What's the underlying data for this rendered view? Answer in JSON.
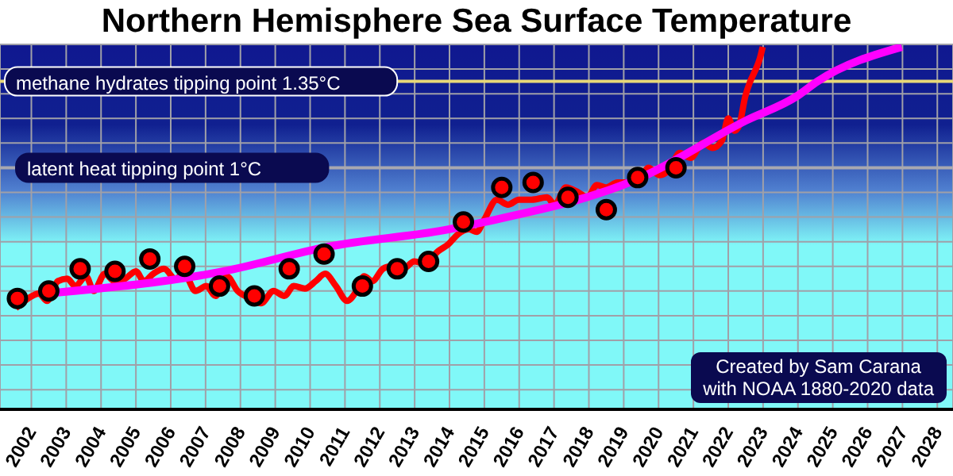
{
  "chart_data": {
    "type": "line",
    "title": "Northern Hemisphere Sea Surface Temperature",
    "xlim": [
      2001.1,
      2028.45
    ],
    "xticks": [
      2002,
      2003,
      2004,
      2005,
      2006,
      2007,
      2008,
      2009,
      2010,
      2011,
      2012,
      2013,
      2014,
      2015,
      2016,
      2017,
      2018,
      2019,
      2020,
      2021,
      2022,
      2023,
      2024,
      2025,
      2026,
      2027,
      2028
    ],
    "ylim": [
      0.02,
      1.5
    ],
    "yticks": [
      {
        "value": 0.1,
        "label": null
      },
      {
        "value": 0.2,
        "label": null
      },
      {
        "value": 0.3,
        "label": null
      },
      {
        "value": 0.4,
        "label": null
      },
      {
        "value": 0.5,
        "label": null
      },
      {
        "value": 0.6,
        "label": null
      },
      {
        "value": 0.7,
        "label": null
      },
      {
        "value": 0.8,
        "label": null
      },
      {
        "value": 0.9,
        "label": null
      },
      {
        "value": 1.0,
        "label": null
      },
      {
        "value": 1.1,
        "label": null
      },
      {
        "value": 1.2,
        "label": null
      },
      {
        "value": 1.3,
        "label": null
      },
      {
        "value": 1.4,
        "label": null
      },
      {
        "value": 1.5,
        "label": null
      }
    ],
    "tick_labels": "x",
    "grid": true,
    "legend": false,
    "series": [
      {
        "type": "line",
        "color": "#ff0000",
        "x": [
          2001.55,
          2001.91,
          2002.22,
          2002.45,
          2002.76,
          2003.03,
          2003.26,
          2003.57,
          2003.79,
          2004.11,
          2004.38,
          2004.69,
          2005.0,
          2005.23,
          2005.5,
          2005.81,
          2006.13,
          2006.39,
          2006.71,
          2007.02,
          2007.29,
          2007.61,
          2007.92,
          2008.28,
          2008.59,
          2008.95,
          2009.26,
          2009.53,
          2009.85,
          2010.16,
          2010.43,
          2010.74,
          2011.06,
          2011.33,
          2011.55,
          2011.78,
          2012.09,
          2012.31,
          2012.67,
          2012.99,
          2013.3,
          2013.66,
          2013.97,
          2014.24,
          2014.56,
          2014.78,
          2015.0,
          2015.36,
          2015.68,
          2015.99,
          2016.35,
          2016.8,
          2017.02,
          2017.34,
          2017.7,
          2017.96,
          2018.23,
          2018.5,
          2018.82,
          2019.13,
          2019.4,
          2019.71,
          2020.03,
          2020.3,
          2020.61,
          2020.92,
          2021.28,
          2021.55,
          2021.82,
          2022.0,
          2022.18,
          2022.31,
          2022.49,
          2022.63,
          2022.76,
          2022.9,
          2022.99
        ],
        "values": [
          0.43,
          0.47,
          0.49,
          0.46,
          0.54,
          0.55,
          0.52,
          0.56,
          0.5,
          0.57,
          0.54,
          0.55,
          0.58,
          0.54,
          0.57,
          0.59,
          0.55,
          0.57,
          0.5,
          0.52,
          0.48,
          0.56,
          0.5,
          0.47,
          0.45,
          0.5,
          0.48,
          0.52,
          0.51,
          0.54,
          0.57,
          0.52,
          0.46,
          0.5,
          0.56,
          0.54,
          0.59,
          0.6,
          0.59,
          0.62,
          0.61,
          0.66,
          0.69,
          0.73,
          0.75,
          0.74,
          0.79,
          0.87,
          0.85,
          0.87,
          0.87,
          0.88,
          0.85,
          0.92,
          0.9,
          0.88,
          0.93,
          0.92,
          0.94,
          0.94,
          0.94,
          1.0,
          0.97,
          0.99,
          1.06,
          1.04,
          1.1,
          1.08,
          1.11,
          1.2,
          1.15,
          1.17,
          1.29,
          1.35,
          1.39,
          1.44,
          1.49
        ]
      },
      {
        "type": "scatter",
        "color": "#ff0000",
        "marker": "circle",
        "x": [
          2001.6,
          2002.5,
          2003.4,
          2004.4,
          2005.4,
          2006.4,
          2007.4,
          2008.4,
          2009.4,
          2010.4,
          2011.5,
          2012.5,
          2013.4,
          2014.4,
          2015.5,
          2016.4,
          2017.4,
          2018.5,
          2019.4,
          2020.5
        ],
        "values": [
          0.47,
          0.5,
          0.59,
          0.58,
          0.63,
          0.6,
          0.52,
          0.48,
          0.59,
          0.65,
          0.52,
          0.59,
          0.62,
          0.78,
          0.92,
          0.94,
          0.88,
          0.83,
          0.96,
          1.0
        ]
      },
      {
        "type": "line",
        "color": "#ff00ff",
        "x": [
          2002.45,
          2007.52,
          2010.52,
          2013.97,
          2015.0,
          2019.49,
          2022.49,
          2023.97,
          2024.56,
          2026.98
        ],
        "values": [
          0.49,
          0.58,
          0.68,
          0.75,
          0.78,
          0.96,
          1.19,
          1.29,
          1.35,
          1.49
        ]
      }
    ],
    "ref_lines": [
      {
        "axis": "y",
        "value": 1.35,
        "label": "methane hydrates tipping point 1.35°C",
        "color": "#e8d878"
      },
      {
        "axis": "y",
        "value": 1.0,
        "label": "latent heat tipping point 1°C",
        "color": "#a8a8b0"
      }
    ],
    "annotations": [
      "Created by Sam Carana",
      "with NOAA 1880-2020 data"
    ]
  }
}
